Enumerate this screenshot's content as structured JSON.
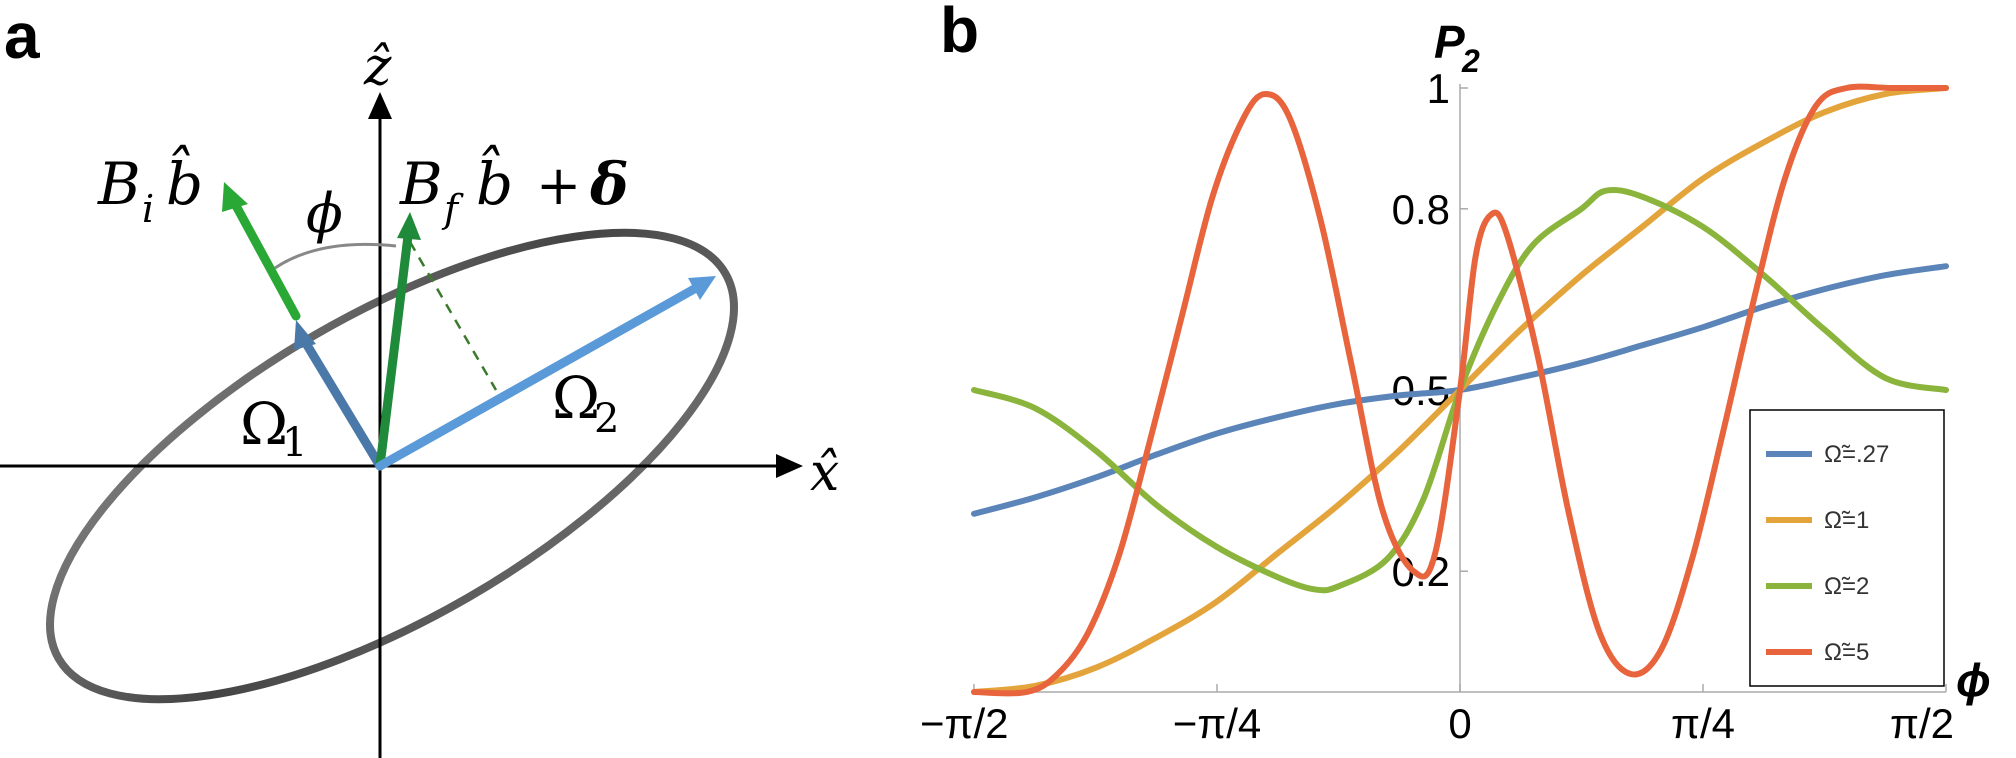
{
  "panel_a": {
    "letter": "a",
    "z_axis_label": "ẑ",
    "x_axis_label": "x̂",
    "bi_label_main": "B",
    "bi_label_sub": "i",
    "bi_label_vec": "b̂",
    "bf_label_main": "B",
    "bf_label_sub": "f",
    "bf_label_vec": "b̂",
    "bf_label_plus": "+",
    "bf_label_delta": "δ",
    "phi_label": "ϕ",
    "omega1_main": "Ω",
    "omega1_sub": "1",
    "omega2_main": "Ω",
    "omega2_sub": "2",
    "colors": {
      "ellipse": "#555555",
      "omega1": "#4a78a8",
      "omega2": "#5a9ad8",
      "bi": "#2aa836",
      "bf": "#1e8a3a",
      "dashed": "#3a7a2a"
    }
  },
  "panel_b": {
    "letter": "b"
  },
  "chart_data": {
    "type": "line",
    "xlabel": "ϕ",
    "ylabel": "P",
    "ylabel_sub": "2",
    "xlim": [
      -1.5708,
      1.5708
    ],
    "ylim": [
      0,
      1
    ],
    "x_ticks": [
      {
        "value": -1.5708,
        "label": "−π/2"
      },
      {
        "value": -0.7854,
        "label": "−π/4"
      },
      {
        "value": 0,
        "label": "0"
      },
      {
        "value": 0.7854,
        "label": "π/4"
      },
      {
        "value": 1.5708,
        "label": "π/2"
      }
    ],
    "y_ticks": [
      {
        "value": 0.2,
        "label": "0.2"
      },
      {
        "value": 0.5,
        "label": "0.5"
      },
      {
        "value": 0.8,
        "label": "0.8"
      },
      {
        "value": 1,
        "label": "1"
      }
    ],
    "grid": false,
    "legend_position": "bottom-right",
    "series": [
      {
        "name": "Ω̃=.27",
        "color": "#5b84b8",
        "points": [
          [
            -1.5708,
            0.295
          ],
          [
            -1.3744,
            0.322
          ],
          [
            -1.1781,
            0.355
          ],
          [
            -0.9817,
            0.393
          ],
          [
            -0.7854,
            0.428
          ],
          [
            -0.589,
            0.455
          ],
          [
            -0.3927,
            0.477
          ],
          [
            -0.1963,
            0.491
          ],
          [
            0,
            0.5
          ],
          [
            0.1963,
            0.521
          ],
          [
            0.3927,
            0.545
          ],
          [
            0.589,
            0.574
          ],
          [
            0.7854,
            0.604
          ],
          [
            0.9817,
            0.638
          ],
          [
            1.1781,
            0.667
          ],
          [
            1.3744,
            0.69
          ],
          [
            1.5708,
            0.705
          ]
        ]
      },
      {
        "name": "Ω̃=1",
        "color": "#e4a43c",
        "points": [
          [
            -1.5708,
            0.0
          ],
          [
            -1.3744,
            0.01
          ],
          [
            -1.1781,
            0.04
          ],
          [
            -0.9817,
            0.09
          ],
          [
            -0.7854,
            0.15
          ],
          [
            -0.589,
            0.23
          ],
          [
            -0.3927,
            0.31
          ],
          [
            -0.1963,
            0.4
          ],
          [
            0,
            0.5
          ],
          [
            0.1963,
            0.6
          ],
          [
            0.3927,
            0.69
          ],
          [
            0.589,
            0.77
          ],
          [
            0.7854,
            0.85
          ],
          [
            0.9817,
            0.91
          ],
          [
            1.1781,
            0.96
          ],
          [
            1.3744,
            0.99
          ],
          [
            1.5708,
            1.0
          ]
        ]
      },
      {
        "name": "Ω̃=2",
        "color": "#8ab43c",
        "points": [
          [
            -1.5708,
            0.5
          ],
          [
            -1.3744,
            0.47
          ],
          [
            -1.1781,
            0.4
          ],
          [
            -0.9817,
            0.31
          ],
          [
            -0.7854,
            0.24
          ],
          [
            -0.589,
            0.19
          ],
          [
            -0.4712,
            0.17
          ],
          [
            -0.3927,
            0.175
          ],
          [
            -0.2356,
            0.22
          ],
          [
            -0.1178,
            0.32
          ],
          [
            0,
            0.5
          ],
          [
            0.1178,
            0.64
          ],
          [
            0.2356,
            0.74
          ],
          [
            0.3927,
            0.8
          ],
          [
            0.4712,
            0.83
          ],
          [
            0.589,
            0.82
          ],
          [
            0.7854,
            0.77
          ],
          [
            0.9817,
            0.69
          ],
          [
            1.1781,
            0.6
          ],
          [
            1.3744,
            0.52
          ],
          [
            1.5708,
            0.5
          ]
        ]
      },
      {
        "name": "Ω̃=5",
        "color": "#e8643c",
        "points": [
          [
            -1.5708,
            0.0
          ],
          [
            -1.4,
            0.0
          ],
          [
            -1.3,
            0.03
          ],
          [
            -1.2,
            0.1
          ],
          [
            -1.1,
            0.23
          ],
          [
            -1.0,
            0.42
          ],
          [
            -0.9,
            0.62
          ],
          [
            -0.8,
            0.82
          ],
          [
            -0.7,
            0.95
          ],
          [
            -0.6283,
            0.99
          ],
          [
            -0.55,
            0.95
          ],
          [
            -0.45,
            0.78
          ],
          [
            -0.35,
            0.54
          ],
          [
            -0.25,
            0.3
          ],
          [
            -0.15,
            0.2
          ],
          [
            -0.08,
            0.23
          ],
          [
            0,
            0.5
          ],
          [
            0.05,
            0.72
          ],
          [
            0.1,
            0.79
          ],
          [
            0.15,
            0.76
          ],
          [
            0.25,
            0.56
          ],
          [
            0.35,
            0.3
          ],
          [
            0.45,
            0.1
          ],
          [
            0.55,
            0.03
          ],
          [
            0.65,
            0.07
          ],
          [
            0.75,
            0.22
          ],
          [
            0.85,
            0.43
          ],
          [
            0.95,
            0.65
          ],
          [
            1.05,
            0.85
          ],
          [
            1.15,
            0.97
          ],
          [
            1.25,
            1.0
          ],
          [
            1.4,
            1.0
          ],
          [
            1.5708,
            1.0
          ]
        ]
      }
    ]
  }
}
